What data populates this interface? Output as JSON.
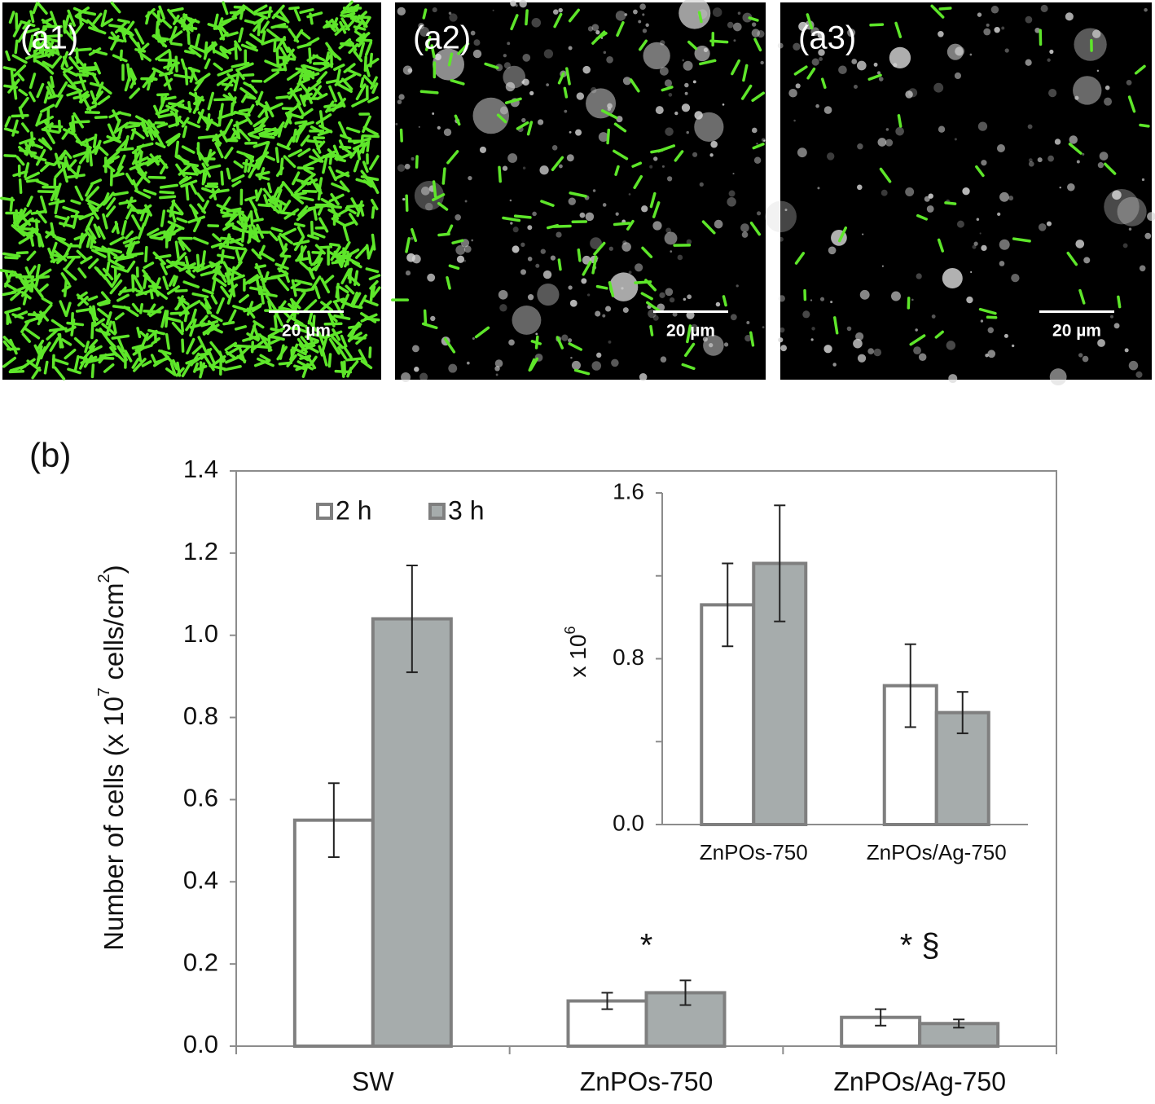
{
  "panels": [
    {
      "label": "(a1)",
      "scale_bar": "20 µm"
    },
    {
      "label": "(a2)",
      "scale_bar": "20 µm"
    },
    {
      "label": "(a3)",
      "scale_bar": "20 µm"
    }
  ],
  "chart_data": [
    {
      "type": "bar",
      "panel_label": "(b)",
      "ylabel": [
        "Number of cells (x 10",
        "7",
        " cells/cm",
        "2",
        ")"
      ],
      "categories": [
        "SW",
        "ZnPOs-750",
        "ZnPOs/Ag-750"
      ],
      "series": [
        {
          "name": "2 h",
          "color": "#ffffff",
          "values": [
            0.55,
            0.11,
            0.07
          ],
          "errors": [
            0.09,
            0.02,
            0.02
          ]
        },
        {
          "name": "3 h",
          "color": "#a6acac",
          "values": [
            1.04,
            0.13,
            0.055
          ],
          "errors": [
            0.13,
            0.03,
            0.01
          ]
        }
      ],
      "annotations": [
        null,
        "*",
        "*  §"
      ],
      "ylim": [
        0,
        1.4
      ],
      "yticks": [
        {
          "value": 0,
          "label": "0.0"
        },
        0.2,
        0.4,
        0.6,
        0.8,
        {
          "value": 1,
          "label": "1.0"
        },
        1.2,
        1.4
      ]
    },
    {
      "type": "bar",
      "ylabel": [
        "x 10",
        "6"
      ],
      "categories": [
        "ZnPOs-750",
        "ZnPOs/Ag-750"
      ],
      "series": [
        {
          "name": "2 h",
          "color": "#ffffff",
          "values": [
            1.06,
            0.67
          ],
          "errors": [
            0.2,
            0.2
          ]
        },
        {
          "name": "3 h",
          "color": "#a6acac",
          "values": [
            1.26,
            0.54
          ],
          "errors": [
            0.28,
            0.1
          ]
        }
      ],
      "ylim": [
        0,
        1.6
      ],
      "yticks": [
        {
          "value": 0,
          "label": "0.0"
        },
        0.8,
        1.6
      ],
      "minor_yticks": [
        0.4,
        1.2
      ]
    }
  ]
}
